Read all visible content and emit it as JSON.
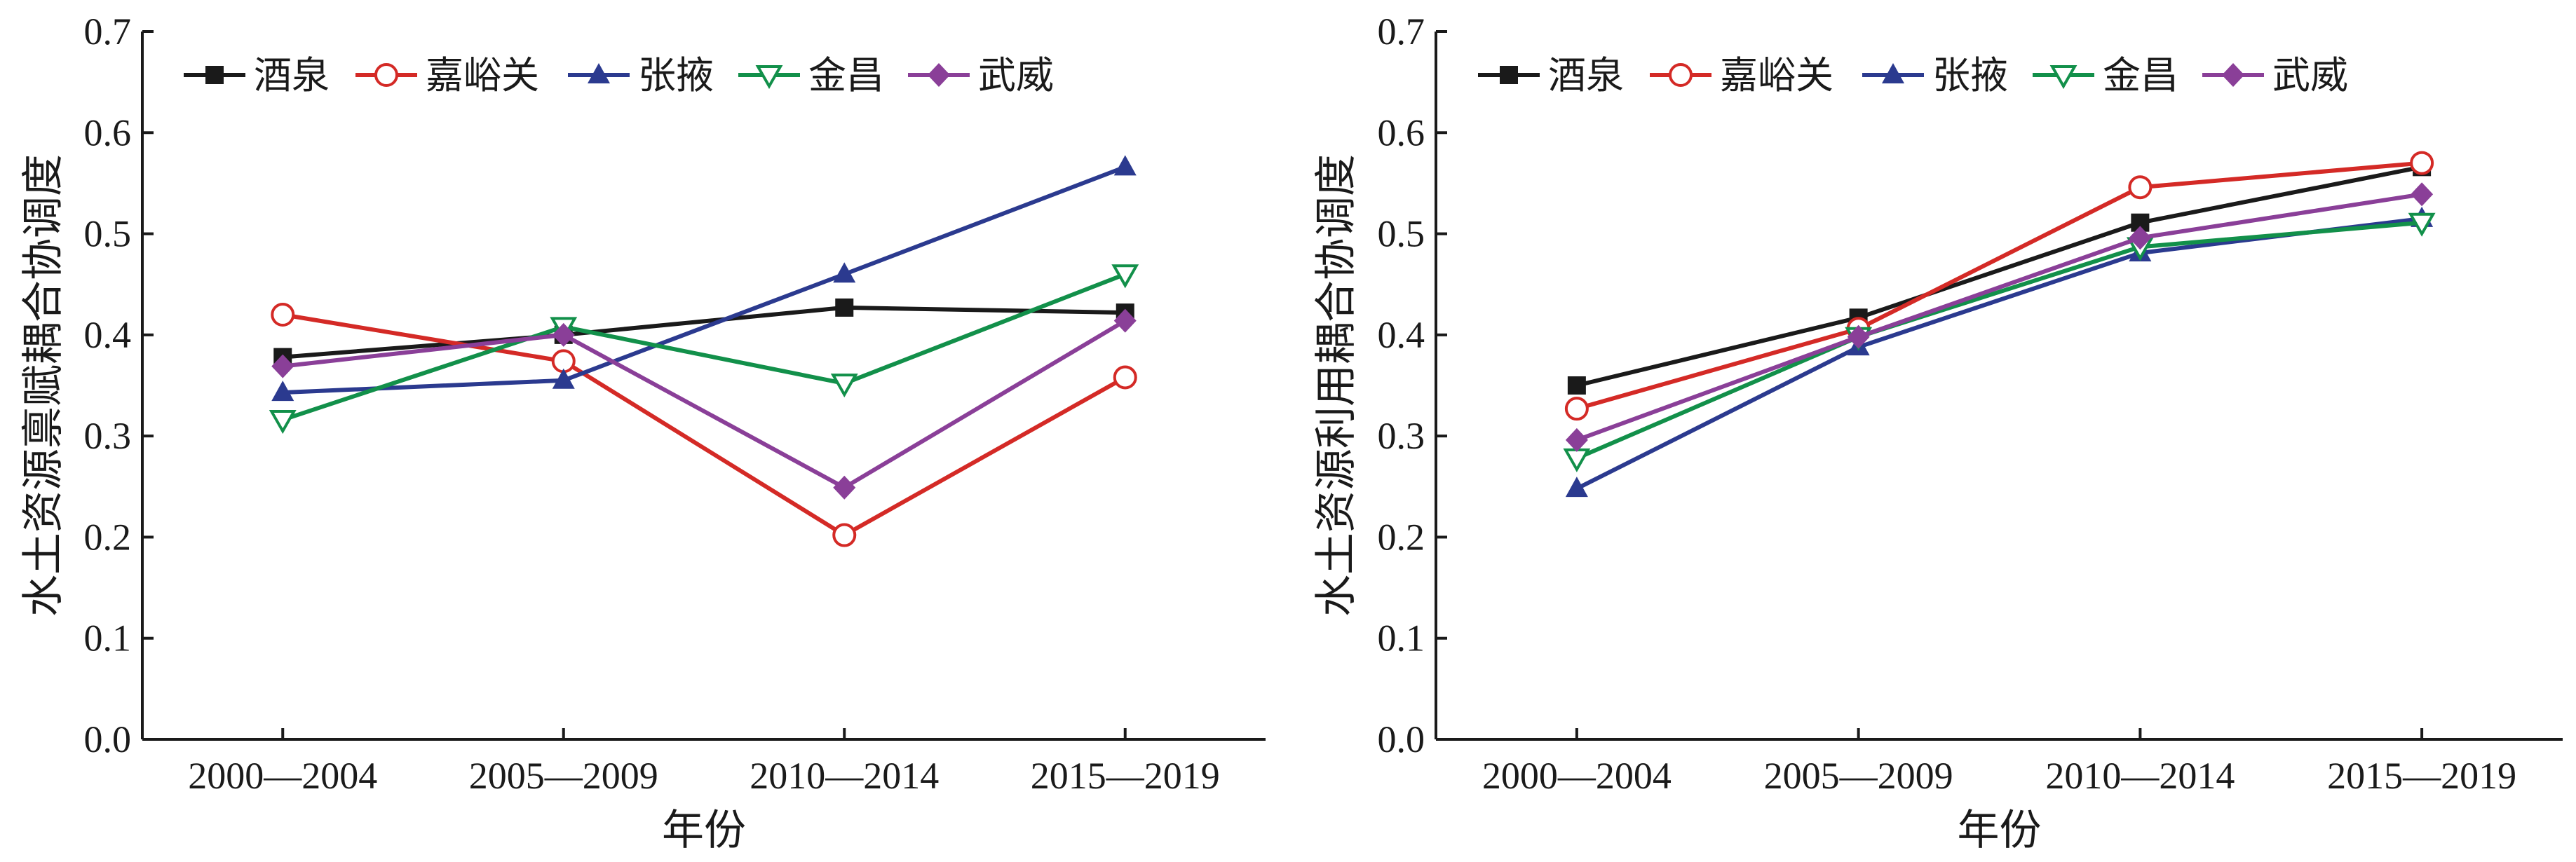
{
  "chart_data": [
    {
      "type": "line",
      "categories": [
        "2000—2004",
        "2005—2009",
        "2010—2014",
        "2015—2019"
      ],
      "xlabel": "年份",
      "ylabel": "水土资源禀赋耦合协调度",
      "ylim": [
        0,
        0.7
      ],
      "yticks": [
        "0.0",
        "0.1",
        "0.2",
        "0.3",
        "0.4",
        "0.5",
        "0.6",
        "0.7"
      ],
      "legend_position": "top-left",
      "grid": false,
      "series": [
        {
          "name": "酒泉",
          "values": [
            0.378,
            0.4,
            0.427,
            0.422
          ],
          "color": "#1a1a1a",
          "marker": "square"
        },
        {
          "name": "嘉峪关",
          "values": [
            0.42,
            0.374,
            0.202,
            0.358
          ],
          "color": "#d42a26",
          "marker": "circle-open"
        },
        {
          "name": "张掖",
          "values": [
            0.343,
            0.355,
            0.46,
            0.566
          ],
          "color": "#2b3a8f",
          "marker": "triangle"
        },
        {
          "name": "金昌",
          "values": [
            0.316,
            0.408,
            0.352,
            0.46
          ],
          "color": "#12904a",
          "marker": "triangle-down-open"
        },
        {
          "name": "武威",
          "values": [
            0.369,
            0.4,
            0.249,
            0.414
          ],
          "color": "#8a3f98",
          "marker": "diamond"
        }
      ]
    },
    {
      "type": "line",
      "categories": [
        "2000—2004",
        "2005—2009",
        "2010—2014",
        "2015—2019"
      ],
      "xlabel": "年份",
      "ylabel": "水土资源利用耦合协调度",
      "ylim": [
        0,
        0.7
      ],
      "yticks": [
        "0.0",
        "0.1",
        "0.2",
        "0.3",
        "0.4",
        "0.5",
        "0.6",
        "0.7"
      ],
      "legend_position": "top-left",
      "grid": false,
      "series": [
        {
          "name": "酒泉",
          "values": [
            0.35,
            0.417,
            0.511,
            0.566
          ],
          "color": "#1a1a1a",
          "marker": "square"
        },
        {
          "name": "嘉峪关",
          "values": [
            0.327,
            0.406,
            0.546,
            0.57
          ],
          "color": "#d42a26",
          "marker": "circle-open"
        },
        {
          "name": "张掖",
          "values": [
            0.248,
            0.388,
            0.481,
            0.515
          ],
          "color": "#2b3a8f",
          "marker": "triangle"
        },
        {
          "name": "金昌",
          "values": [
            0.278,
            0.398,
            0.487,
            0.511
          ],
          "color": "#12904a",
          "marker": "triangle-down-open"
        },
        {
          "name": "武威",
          "values": [
            0.296,
            0.398,
            0.496,
            0.539
          ],
          "color": "#8a3f98",
          "marker": "diamond"
        }
      ]
    }
  ]
}
